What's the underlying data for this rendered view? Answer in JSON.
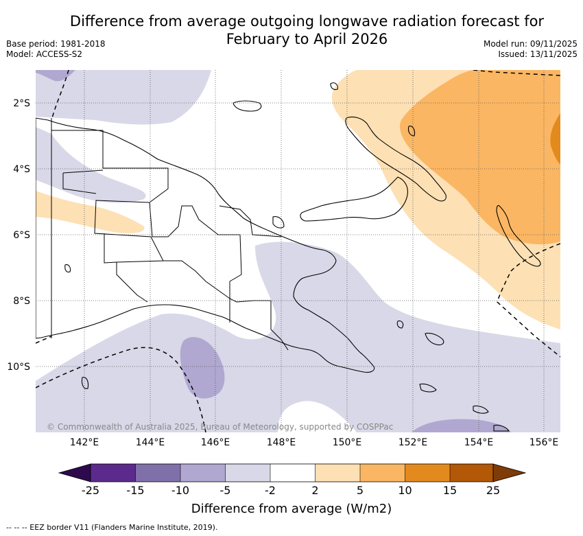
{
  "header": {
    "title_line1": "Difference from average outgoing longwave radiation forecast for",
    "title_line2": "February to April 2026",
    "base_period": "Base period: 1981-2018",
    "model": "Model: ACCESS-S2",
    "model_run": "Model run: 09/11/2025",
    "issued": "Issued: 13/11/2025"
  },
  "map": {
    "credit": "© Commonwealth of Australia 2025, Bureau of Meteorology, supported by COSPPac",
    "lat_labels": [
      "2°S",
      "4°S",
      "6°S",
      "8°S",
      "10°S"
    ],
    "lon_labels": [
      "142°E",
      "144°E",
      "146°E",
      "148°E",
      "150°E",
      "152°E",
      "154°E",
      "156°E"
    ],
    "colors": {
      "neg_25": "#2d0a4e",
      "neg_15": "#5c2a8c",
      "neg_10": "#8070aa",
      "neg_5": "#b0a8d0",
      "neg_2": "#d8d8e8",
      "neutral": "#ffffff",
      "pos_2": "#fde0b4",
      "pos_5": "#fbb663",
      "pos_10": "#e38a1e",
      "pos_15": "#b35806",
      "pos_25": "#7f3b08"
    }
  },
  "colorbar": {
    "ticks": [
      "-25",
      "-15",
      "-10",
      "-5",
      "-2",
      "2",
      "5",
      "10",
      "15",
      "25"
    ],
    "title": "Difference from average (W/m2)"
  },
  "footer": {
    "legend": "--  --  -- EEZ border V11 (Flanders Marine Institute, 2019)."
  }
}
